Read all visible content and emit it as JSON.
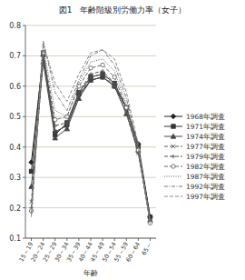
{
  "chart_data": {
    "type": "line",
    "title": "図1　年齢階級別労働力率（女子）",
    "x_label": "年齢",
    "categories": [
      "15～19",
      "20～24",
      "25～29",
      "30～34",
      "35～39",
      "40～44",
      "45～49",
      "50～54",
      "55～59",
      "60～64",
      "65～"
    ],
    "ylim": [
      0.1,
      0.8
    ],
    "yticks": [
      0.1,
      0.2,
      0.3,
      0.4,
      0.5,
      0.6,
      0.7,
      0.8
    ],
    "grid": true,
    "legend": "right",
    "series": [
      {
        "name": "1968年調査",
        "color": "#222222",
        "marker": "diamond",
        "line_style": "solid",
        "values": [
          0.35,
          0.7,
          0.45,
          0.47,
          0.57,
          0.62,
          0.63,
          0.6,
          0.53,
          0.41,
          0.17
        ]
      },
      {
        "name": "1971年調査",
        "color": "#333333",
        "marker": "square",
        "line_style": "solid",
        "values": [
          0.32,
          0.71,
          0.44,
          0.48,
          0.58,
          0.63,
          0.64,
          0.61,
          0.53,
          0.4,
          0.17
        ]
      },
      {
        "name": "1974年調査",
        "color": "#444444",
        "marker": "triangle",
        "line_style": "solid",
        "values": [
          0.27,
          0.68,
          0.43,
          0.46,
          0.56,
          0.62,
          0.63,
          0.6,
          0.51,
          0.39,
          0.16
        ]
      },
      {
        "name": "1977年調査",
        "color": "#555555",
        "marker": "cross",
        "line_style": "dashed",
        "values": [
          0.22,
          0.69,
          0.45,
          0.47,
          0.57,
          0.63,
          0.64,
          0.6,
          0.51,
          0.38,
          0.16
        ]
      },
      {
        "name": "1979年調査",
        "color": "#555555",
        "marker": "plus",
        "line_style": "dashed",
        "values": [
          0.2,
          0.7,
          0.47,
          0.48,
          0.58,
          0.64,
          0.65,
          0.61,
          0.52,
          0.38,
          0.16
        ]
      },
      {
        "name": "1982年調査",
        "color": "#666666",
        "marker": "circle",
        "line_style": "dashed",
        "values": [
          0.19,
          0.71,
          0.49,
          0.5,
          0.6,
          0.66,
          0.67,
          0.63,
          0.53,
          0.39,
          0.15
        ]
      },
      {
        "name": "1987年調査",
        "color": "#666666",
        "marker": "none",
        "line_style": "dotted",
        "values": [
          0.18,
          0.73,
          0.52,
          0.5,
          0.61,
          0.68,
          0.69,
          0.65,
          0.54,
          0.39,
          0.15
        ]
      },
      {
        "name": "1992年調査",
        "color": "#777777",
        "marker": "none",
        "line_style": "dashdot",
        "values": [
          0.18,
          0.75,
          0.58,
          0.52,
          0.62,
          0.7,
          0.72,
          0.67,
          0.56,
          0.4,
          0.15
        ]
      },
      {
        "name": "1997年調査",
        "color": "#888888",
        "marker": "none",
        "line_style": "dashed",
        "values": [
          0.17,
          0.74,
          0.61,
          0.55,
          0.64,
          0.71,
          0.72,
          0.69,
          0.58,
          0.41,
          0.15
        ]
      }
    ]
  }
}
